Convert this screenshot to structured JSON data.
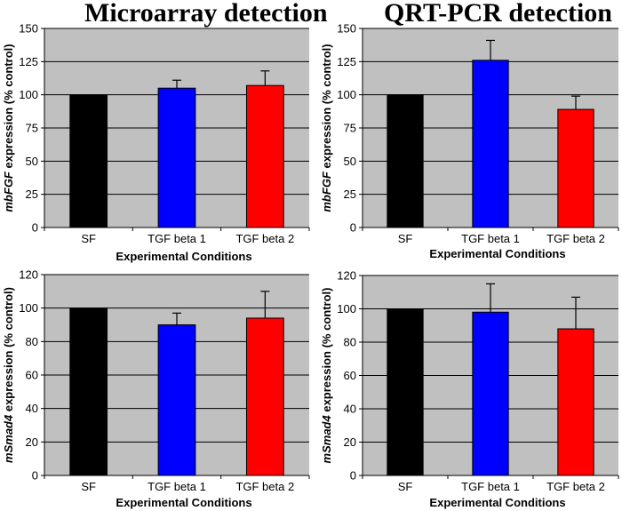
{
  "column_titles": {
    "left": "Microarray detection",
    "right": "QRT-PCR detection"
  },
  "colors": {
    "plot_bg": "#c0c0c0",
    "gridline": "#000000",
    "SF": "#000000",
    "TGF beta 1": "#0000ff",
    "TGF beta 2": "#ff0000"
  },
  "chart_data": [
    {
      "id": "microarray-mbfgf",
      "type": "bar",
      "title": "Microarray detection",
      "categories": [
        "SF",
        "TGF beta 1",
        "TGF beta 2"
      ],
      "values": [
        100,
        105,
        107
      ],
      "errors": [
        0,
        6,
        11
      ],
      "colors": [
        "#000000",
        "#0000ff",
        "#ff0000"
      ],
      "xlabel": "Experimental Conditions",
      "ylabel_italic": "mbFGF",
      "ylabel_rest": " expression (% control)",
      "ylim": [
        0,
        150
      ],
      "yticks": [
        0,
        25,
        50,
        75,
        100,
        125,
        150
      ],
      "grid": true
    },
    {
      "id": "qrtpcr-mbfgf",
      "type": "bar",
      "title": "QRT-PCR detection",
      "categories": [
        "SF",
        "TGF beta 1",
        "TGF beta 2"
      ],
      "values": [
        100,
        126,
        89
      ],
      "errors": [
        0,
        15,
        10
      ],
      "colors": [
        "#000000",
        "#0000ff",
        "#ff0000"
      ],
      "xlabel": "Experimental Conditions",
      "ylabel_italic": "mbFGF",
      "ylabel_rest": " expression (% control)",
      "ylim": [
        0,
        150
      ],
      "yticks": [
        0,
        25,
        50,
        75,
        100,
        125,
        150
      ],
      "grid": true
    },
    {
      "id": "microarray-msmad4",
      "type": "bar",
      "title": "Microarray detection",
      "categories": [
        "SF",
        "TGF beta 1",
        "TGF beta 2"
      ],
      "values": [
        100,
        90,
        94
      ],
      "errors": [
        0,
        7,
        16
      ],
      "colors": [
        "#000000",
        "#0000ff",
        "#ff0000"
      ],
      "xlabel": "Experimental Conditions",
      "ylabel_italic": "mSmad4",
      "ylabel_rest": " expression (% control)",
      "ylim": [
        0,
        120
      ],
      "yticks": [
        0,
        20,
        40,
        60,
        80,
        100,
        120
      ],
      "grid": true
    },
    {
      "id": "qrtpcr-msmad4",
      "type": "bar",
      "title": "QRT-PCR detection",
      "categories": [
        "SF",
        "TGF beta 1",
        "TGF beta 2"
      ],
      "values": [
        100,
        98,
        88
      ],
      "errors": [
        0,
        17,
        19
      ],
      "colors": [
        "#000000",
        "#0000ff",
        "#ff0000"
      ],
      "xlabel": "Experimental Conditions",
      "ylabel_italic": "mSmad4",
      "ylabel_rest": " expression (% control)",
      "ylim": [
        0,
        120
      ],
      "yticks": [
        0,
        20,
        40,
        60,
        80,
        100,
        120
      ],
      "grid": true
    }
  ]
}
